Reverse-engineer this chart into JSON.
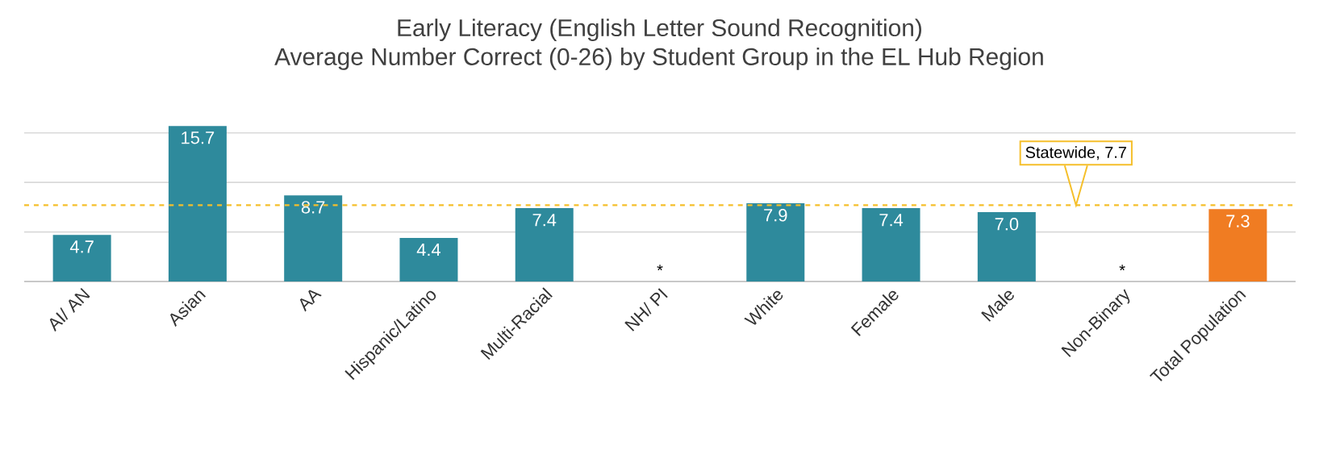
{
  "chart_data": {
    "type": "bar",
    "title": "Early Literacy (English Letter Sound Recognition)",
    "subtitle": "Average Number Correct (0-26) by Student Group in the EL Hub Region",
    "categories": [
      "AI/ AN",
      "Asian",
      "AA",
      "Hispanic/Latino",
      "Multi-Racial",
      "NH/ PI",
      "White",
      "Female",
      "Male",
      "Non-Binary",
      "Total Population"
    ],
    "values": [
      4.7,
      15.7,
      8.7,
      4.4,
      7.4,
      null,
      7.9,
      7.4,
      7.0,
      null,
      7.3
    ],
    "value_labels": [
      "4.7",
      "15.7",
      "8.7",
      "4.4",
      "7.4",
      "*",
      "7.9",
      "7.4",
      "7.0",
      "*",
      "7.3"
    ],
    "colors": [
      "#2e8a9c",
      "#2e8a9c",
      "#2e8a9c",
      "#2e8a9c",
      "#2e8a9c",
      "#2e8a9c",
      "#2e8a9c",
      "#2e8a9c",
      "#2e8a9c",
      "#2e8a9c",
      "#f07c22"
    ],
    "tick_labels": "x",
    "grid": "y",
    "ref_lines": [
      {
        "axis": "y",
        "value": 7.7,
        "label": "Statewide, 7.7",
        "color": "#f5bf2a",
        "line_style": "dashed"
      }
    ]
  }
}
